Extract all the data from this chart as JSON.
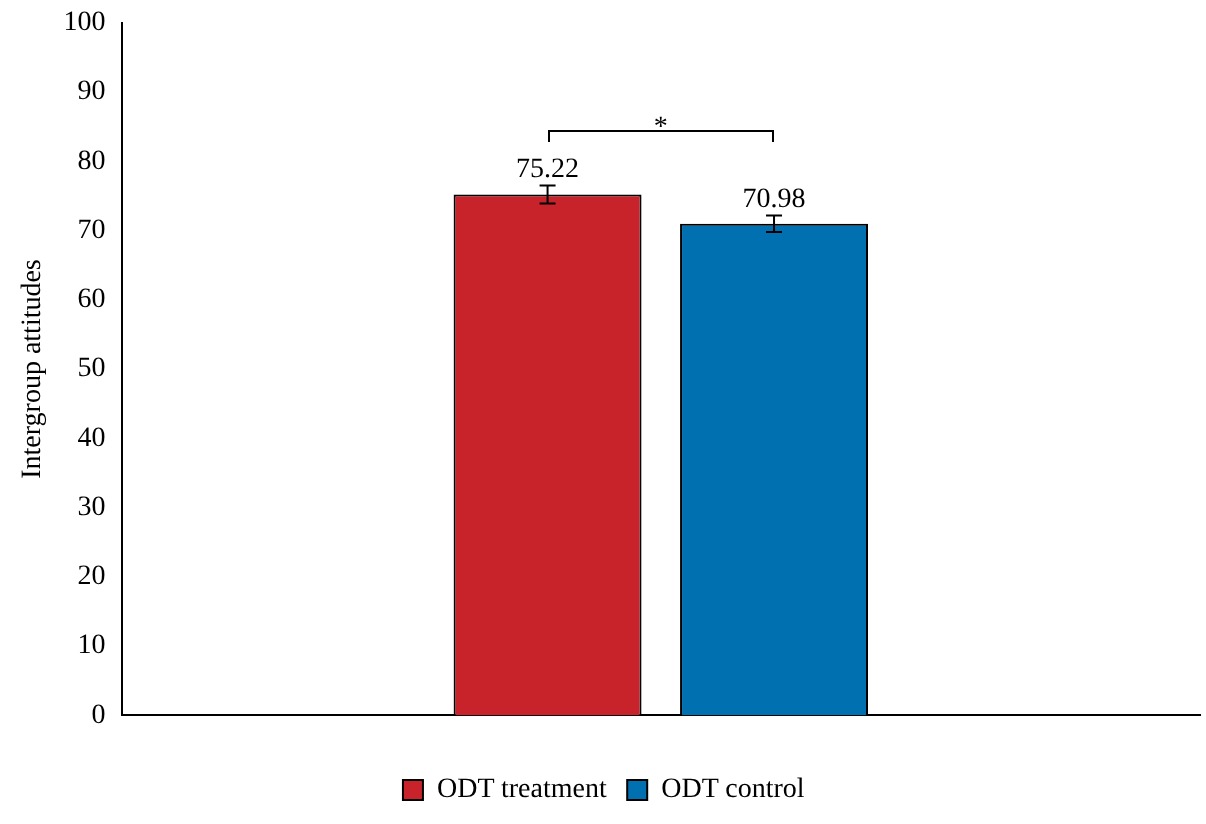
{
  "chart_data": {
    "type": "bar",
    "ylabel": "Intergroup attitudes",
    "categories": [
      null
    ],
    "series": [
      {
        "name": "ODT treatment",
        "color": "#c8232a",
        "values": [
          75.22
        ],
        "errors": [
          1.3
        ]
      },
      {
        "name": "ODT control",
        "color": "#0070b0",
        "values": [
          70.98
        ],
        "errors": [
          1.2
        ]
      }
    ],
    "ylim": [
      0,
      100
    ],
    "yticks": [
      0,
      10,
      20,
      30,
      40,
      50,
      60,
      70,
      80,
      90,
      100
    ],
    "grid": false,
    "legend": "bottom",
    "data_labels": true,
    "annotations": [
      "*"
    ]
  }
}
